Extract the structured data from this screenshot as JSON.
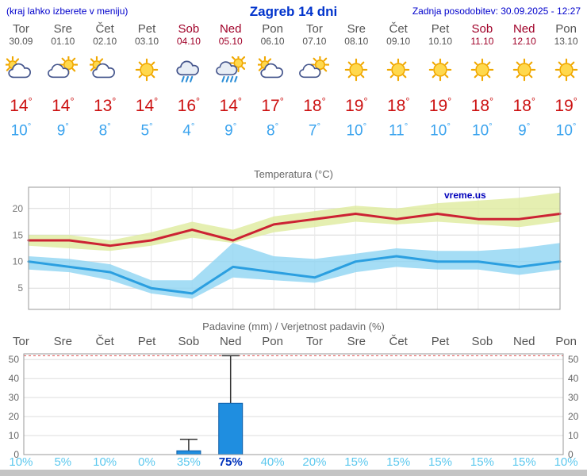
{
  "header": {
    "hint": "(kraj lahko izberete v meniju)",
    "title": "Zagreb 14 dni",
    "updated": "Zadnja posodobitev: 30.09.2025 - 12:27"
  },
  "degree_symbol": "°",
  "colors": {
    "header_blue": "#0000cc",
    "weekday_gray": "#555555",
    "weekend_red": "#a00028",
    "tmax_red": "#cc1111",
    "tmin_blue": "#3aa3ee",
    "percent_light": "#5cc8ee",
    "percent_highlight": "#0033bb"
  },
  "days": [
    {
      "name": "Tor",
      "date": "30.09",
      "weekend": false,
      "icon": "mostly-cloudy",
      "tmax": "14",
      "tmin": "10",
      "precip_prob": "10%",
      "prob_highlight": false
    },
    {
      "name": "Sre",
      "date": "01.10",
      "weekend": false,
      "icon": "partly-sunny",
      "tmax": "14",
      "tmin": "9",
      "precip_prob": "5%",
      "prob_highlight": false
    },
    {
      "name": "Čet",
      "date": "02.10",
      "weekend": false,
      "icon": "mostly-cloudy",
      "tmax": "13",
      "tmin": "8",
      "precip_prob": "10%",
      "prob_highlight": false
    },
    {
      "name": "Pet",
      "date": "03.10",
      "weekend": false,
      "icon": "sunny",
      "tmax": "14",
      "tmin": "5",
      "precip_prob": "0%",
      "prob_highlight": false
    },
    {
      "name": "Sob",
      "date": "04.10",
      "weekend": true,
      "icon": "rain",
      "tmax": "16",
      "tmin": "4",
      "precip_prob": "35%",
      "prob_highlight": false
    },
    {
      "name": "Ned",
      "date": "05.10",
      "weekend": true,
      "icon": "rain-sun",
      "tmax": "14",
      "tmin": "9",
      "precip_prob": "75%",
      "prob_highlight": true
    },
    {
      "name": "Pon",
      "date": "06.10",
      "weekend": false,
      "icon": "mostly-cloudy",
      "tmax": "17",
      "tmin": "8",
      "precip_prob": "40%",
      "prob_highlight": false
    },
    {
      "name": "Tor",
      "date": "07.10",
      "weekend": false,
      "icon": "partly-sunny",
      "tmax": "18",
      "tmin": "7",
      "precip_prob": "20%",
      "prob_highlight": false
    },
    {
      "name": "Sre",
      "date": "08.10",
      "weekend": false,
      "icon": "sunny",
      "tmax": "19",
      "tmin": "10",
      "precip_prob": "15%",
      "prob_highlight": false
    },
    {
      "name": "Čet",
      "date": "09.10",
      "weekend": false,
      "icon": "sunny",
      "tmax": "18",
      "tmin": "11",
      "precip_prob": "15%",
      "prob_highlight": false
    },
    {
      "name": "Pet",
      "date": "10.10",
      "weekend": false,
      "icon": "sunny",
      "tmax": "19",
      "tmin": "10",
      "precip_prob": "15%",
      "prob_highlight": false
    },
    {
      "name": "Sob",
      "date": "11.10",
      "weekend": true,
      "icon": "sunny",
      "tmax": "18",
      "tmin": "10",
      "precip_prob": "15%",
      "prob_highlight": false
    },
    {
      "name": "Ned",
      "date": "12.10",
      "weekend": true,
      "icon": "sunny",
      "tmax": "18",
      "tmin": "9",
      "precip_prob": "15%",
      "prob_highlight": false
    },
    {
      "name": "Pon",
      "date": "13.10",
      "weekend": false,
      "icon": "sunny",
      "tmax": "19",
      "tmin": "10",
      "precip_prob": "10%",
      "prob_highlight": false
    }
  ],
  "chart_data": [
    {
      "type": "line",
      "title": "Temperatura (°C)",
      "watermark": "vreme.us",
      "categories": [
        "Tor 30.09",
        "Sre 01.10",
        "Čet 02.10",
        "Pet 03.10",
        "Sob 04.10",
        "Ned 05.10",
        "Pon 06.10",
        "Tor 07.10",
        "Sre 08.10",
        "Čet 09.10",
        "Pet 10.10",
        "Sob 11.10",
        "Ned 12.10",
        "Pon 13.10"
      ],
      "ylim": [
        1,
        24
      ],
      "yticks": [
        5,
        10,
        15,
        20
      ],
      "grid": true,
      "band_colors": {
        "max": "#dfeb9e",
        "min": "#8fd4f2"
      },
      "series": [
        {
          "name": "tmax",
          "color": "#cc2233",
          "values": [
            14,
            14,
            13,
            14,
            16,
            14,
            17,
            18,
            19,
            18,
            19,
            18,
            18,
            19
          ]
        },
        {
          "name": "tmin",
          "color": "#2b9fe0",
          "values": [
            10,
            9,
            8,
            5,
            4,
            9,
            8,
            7,
            10,
            11,
            10,
            10,
            9,
            10
          ]
        },
        {
          "name": "tmax_range_upper",
          "values": [
            15,
            15,
            14,
            15.5,
            17.5,
            16,
            18.5,
            19.5,
            20.5,
            20,
            21,
            21.5,
            22,
            23
          ]
        },
        {
          "name": "tmax_range_lower",
          "values": [
            13,
            12.5,
            12,
            13,
            14.5,
            13.5,
            15.5,
            16.5,
            17.5,
            17,
            17.5,
            17,
            16.5,
            17.5
          ]
        },
        {
          "name": "tmin_range_upper",
          "values": [
            11,
            10.5,
            9.5,
            6.5,
            6.5,
            13.5,
            11,
            10.5,
            11.5,
            12.5,
            12,
            12,
            12.5,
            13.5
          ]
        },
        {
          "name": "tmin_range_lower",
          "values": [
            8.5,
            8,
            6.5,
            4,
            3,
            7,
            6.5,
            6,
            8,
            9,
            8.5,
            8.5,
            7.5,
            8.5
          ]
        }
      ]
    },
    {
      "type": "bar",
      "title": "Padavine (mm) / Verjetnost padavin (%)",
      "categories": [
        "Tor",
        "Sre",
        "Čet",
        "Pet",
        "Sob",
        "Ned",
        "Pon",
        "Tor",
        "Sre",
        "Čet",
        "Pet",
        "Sob",
        "Ned",
        "Pon"
      ],
      "values": [
        0,
        0,
        0,
        0,
        2,
        27,
        0,
        0,
        0,
        0,
        0,
        0,
        0,
        0
      ],
      "whisker_max": [
        0,
        0,
        0,
        0,
        8,
        52,
        0,
        0,
        0,
        0,
        0,
        0,
        0,
        0
      ],
      "probabilities": [
        "10%",
        "5%",
        "10%",
        "0%",
        "35%",
        "75%",
        "40%",
        "20%",
        "15%",
        "15%",
        "15%",
        "15%",
        "15%",
        "10%"
      ],
      "ylim": [
        0,
        53
      ],
      "yticks": [
        0,
        10,
        20,
        30,
        40,
        50
      ],
      "bar_color": "#1f8ee0",
      "bar_border": "#0f5fa8",
      "threshold_line_value": 52,
      "threshold_line_color": "#e05050"
    }
  ]
}
